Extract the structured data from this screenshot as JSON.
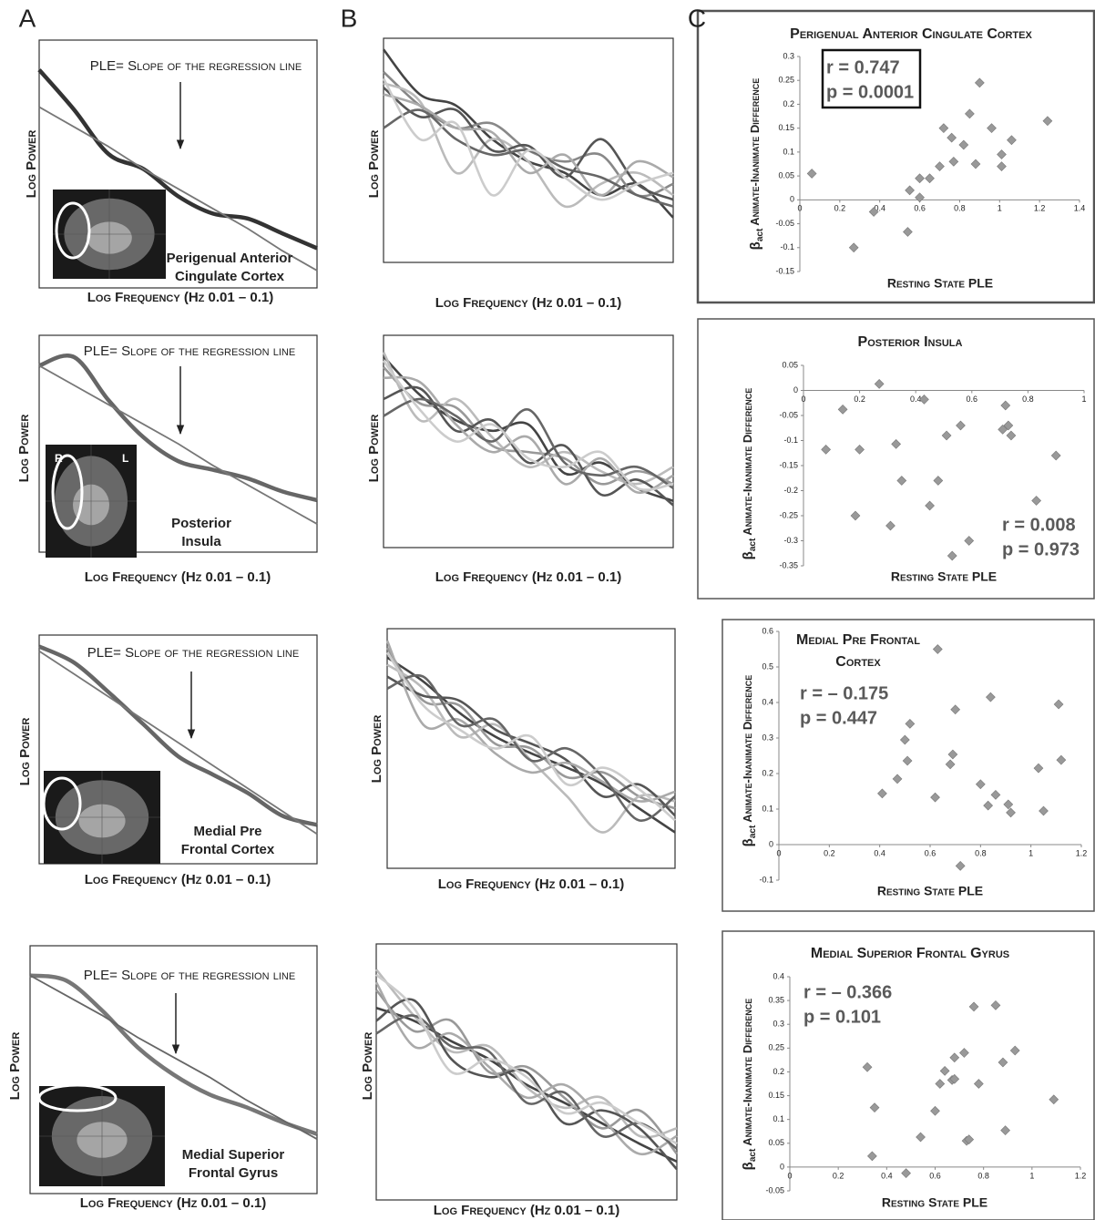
{
  "chart_data": [
    {
      "type": "line",
      "panel_label": "A",
      "annotation": "PLE= Slope of the regression line",
      "region": [
        "Perigenual Anterior",
        "Cingulate Cortex"
      ],
      "ylabel": "Log Power",
      "xlabel": "Log Frequency (Hz 0.01 – 0.1)",
      "ylim": [
        0,
        100
      ],
      "series": [
        {
          "color": "#333333",
          "values": [
            88,
            72,
            54,
            48,
            37,
            30,
            28,
            22,
            16
          ]
        },
        {
          "color": "#777777",
          "values": [
            73,
            65,
            57,
            48,
            40,
            32,
            24,
            15,
            7
          ]
        }
      ]
    },
    {
      "type": "line",
      "annotation": "PLE= Slope of the regression line",
      "region": [
        "Posterior",
        "Insula"
      ],
      "image_labels": [
        "R",
        "L"
      ],
      "ylabel": "Log Power",
      "xlabel": "Log Frequency (Hz 0.01 – 0.1)",
      "ylim": [
        0,
        100
      ],
      "series": [
        {
          "color": "#666666",
          "values": [
            86,
            90,
            70,
            53,
            42,
            38,
            34,
            28,
            24
          ]
        },
        {
          "color": "#777777",
          "values": [
            86,
            77,
            68,
            59,
            50,
            40,
            31,
            22,
            13
          ]
        }
      ]
    },
    {
      "type": "line",
      "annotation": "PLE= Slope of the regression line",
      "region": [
        "Medial Pre",
        "Frontal Cortex"
      ],
      "ylabel": "Log Power",
      "xlabel": "Log Frequency (Hz 0.01 – 0.1)",
      "ylim": [
        0,
        100
      ],
      "series": [
        {
          "color": "#666666",
          "values": [
            95,
            88,
            75,
            61,
            47,
            39,
            31,
            21,
            17
          ]
        },
        {
          "color": "#777777",
          "values": [
            93,
            83,
            73,
            63,
            53,
            43,
            33,
            23,
            13
          ]
        }
      ]
    },
    {
      "type": "line",
      "annotation": "PLE= Slope of the regression line",
      "region": [
        "Medial Superior",
        "Frontal Gyrus"
      ],
      "ylabel": "Log Power",
      "xlabel": "Log Frequency (Hz 0.01 – 0.1)",
      "ylim": [
        0,
        100
      ],
      "series": [
        {
          "color": "#777777",
          "values": [
            88,
            86,
            74,
            59,
            48,
            40,
            35,
            29,
            24
          ]
        },
        {
          "color": "#666666",
          "values": [
            88,
            80,
            72,
            63,
            55,
            47,
            38,
            30,
            22
          ]
        }
      ]
    },
    {
      "type": "line",
      "panel_label": "B",
      "ylabel": "Log Power",
      "xlabel": "Log Frequency (Hz 0.01 – 0.1)",
      "ylim": [
        0,
        100
      ],
      "series": [
        {
          "color": "#444444",
          "values": [
            95,
            75,
            70,
            55,
            45,
            40,
            30,
            35,
            20
          ]
        },
        {
          "color": "#888888",
          "values": [
            85,
            70,
            60,
            62,
            50,
            45,
            48,
            30,
            35
          ]
        },
        {
          "color": "#bbbbbb",
          "values": [
            80,
            72,
            40,
            55,
            45,
            25,
            35,
            40,
            30
          ]
        },
        {
          "color": "#555555",
          "values": [
            78,
            65,
            68,
            50,
            52,
            38,
            55,
            35,
            28
          ]
        },
        {
          "color": "#aaaaaa",
          "values": [
            75,
            70,
            60,
            58,
            40,
            48,
            30,
            45,
            38
          ]
        },
        {
          "color": "#666666",
          "values": [
            60,
            68,
            55,
            48,
            50,
            42,
            38,
            30,
            25
          ]
        },
        {
          "color": "#cccccc",
          "values": [
            82,
            55,
            62,
            30,
            50,
            38,
            28,
            35,
            40
          ]
        }
      ]
    },
    {
      "type": "line",
      "ylabel": "Log Power",
      "xlabel": "Log Frequency (Hz 0.01 – 0.1)",
      "ylim": [
        0,
        100
      ],
      "series": [
        {
          "color": "#444444",
          "values": [
            90,
            72,
            60,
            55,
            58,
            35,
            40,
            28,
            22
          ]
        },
        {
          "color": "#999999",
          "values": [
            85,
            68,
            66,
            48,
            45,
            42,
            30,
            36,
            30
          ]
        },
        {
          "color": "#bbbbbb",
          "values": [
            92,
            60,
            70,
            52,
            38,
            45,
            36,
            30,
            38
          ]
        },
        {
          "color": "#555555",
          "values": [
            70,
            75,
            55,
            60,
            40,
            48,
            25,
            32,
            20
          ]
        },
        {
          "color": "#aaaaaa",
          "values": [
            80,
            78,
            58,
            45,
            52,
            30,
            42,
            26,
            34
          ]
        },
        {
          "color": "#666666",
          "values": [
            62,
            70,
            62,
            50,
            65,
            40,
            34,
            38,
            28
          ]
        },
        {
          "color": "#cccccc",
          "values": [
            88,
            65,
            50,
            58,
            42,
            38,
            45,
            28,
            30
          ]
        }
      ]
    },
    {
      "type": "line",
      "ylabel": "Log Power",
      "xlabel": "Log Frequency (Hz 0.01 – 0.1)",
      "ylim": [
        0,
        100
      ],
      "series": [
        {
          "color": "#444444",
          "values": [
            88,
            78,
            65,
            55,
            48,
            42,
            35,
            25,
            15
          ]
        },
        {
          "color": "#999999",
          "values": [
            92,
            70,
            68,
            52,
            50,
            38,
            40,
            30,
            25
          ]
        },
        {
          "color": "#bbbbbb",
          "values": [
            85,
            75,
            55,
            60,
            45,
            30,
            15,
            30,
            28
          ]
        },
        {
          "color": "#555555",
          "values": [
            80,
            72,
            70,
            58,
            52,
            45,
            30,
            35,
            22
          ]
        },
        {
          "color": "#aaaaaa",
          "values": [
            95,
            60,
            62,
            48,
            40,
            44,
            36,
            28,
            32
          ]
        },
        {
          "color": "#666666",
          "values": [
            75,
            80,
            60,
            62,
            45,
            50,
            38,
            20,
            30
          ]
        },
        {
          "color": "#cccccc",
          "values": [
            90,
            68,
            58,
            50,
            55,
            35,
            42,
            33,
            20
          ]
        }
      ]
    },
    {
      "type": "line",
      "ylabel": "Log Power",
      "xlabel": "Log Frequency (Hz 0.01 – 0.1)",
      "ylim": [
        0,
        100
      ],
      "series": [
        {
          "color": "#444444",
          "values": [
            75,
            70,
            62,
            55,
            45,
            38,
            30,
            22,
            15
          ]
        },
        {
          "color": "#999999",
          "values": [
            82,
            66,
            70,
            50,
            52,
            40,
            28,
            35,
            18
          ]
        },
        {
          "color": "#bbbbbb",
          "values": [
            90,
            72,
            58,
            60,
            44,
            36,
            40,
            25,
            28
          ]
        },
        {
          "color": "#555555",
          "values": [
            70,
            78,
            55,
            48,
            50,
            30,
            35,
            28,
            12
          ]
        },
        {
          "color": "#aaaaaa",
          "values": [
            85,
            60,
            65,
            52,
            40,
            45,
            32,
            18,
            25
          ]
        },
        {
          "color": "#666666",
          "values": [
            65,
            72,
            60,
            58,
            38,
            42,
            25,
            30,
            20
          ]
        },
        {
          "color": "#cccccc",
          "values": [
            88,
            75,
            50,
            55,
            48,
            34,
            38,
            30,
            22
          ]
        }
      ]
    },
    {
      "type": "scatter",
      "panel_label": "C",
      "title": [
        "Perigenual Anterior Cingulate Cortex"
      ],
      "xlabel": "Resting State PLE",
      "ylabel_symbol": "β",
      "ylabel_subscript": "act",
      "ylabel": "Animate-Inanimate Difference",
      "annotation": [
        "r = 0.747",
        "p = 0.0001"
      ],
      "annotation_box": true,
      "color": "#999999",
      "xlim": [
        0,
        1.4
      ],
      "xticks": [
        0,
        0.2,
        0.4,
        0.6,
        0.8,
        1,
        1.2,
        1.4
      ],
      "ylim": [
        -0.15,
        0.3
      ],
      "yticks": [
        -0.15,
        -0.1,
        -0.05,
        0,
        0.05,
        0.1,
        0.15,
        0.2,
        0.25,
        0.3
      ],
      "x": [
        0.06,
        0.27,
        0.37,
        0.54,
        0.55,
        0.6,
        0.6,
        0.65,
        0.7,
        0.72,
        0.76,
        0.77,
        0.82,
        0.85,
        0.88,
        0.9,
        0.96,
        1.01,
        1.01,
        1.06,
        1.24
      ],
      "values": [
        0.055,
        -0.1,
        -0.025,
        -0.067,
        0.02,
        0.005,
        0.045,
        0.045,
        0.07,
        0.15,
        0.13,
        0.08,
        0.115,
        0.18,
        0.075,
        0.245,
        0.15,
        0.095,
        0.07,
        0.125,
        0.165
      ]
    },
    {
      "type": "scatter",
      "title": [
        "Posterior Insula"
      ],
      "xlabel": "Resting State PLE",
      "ylabel_symbol": "β",
      "ylabel_subscript": "act",
      "ylabel": "Animate-Inanimate Difference",
      "annotation": [
        "r = 0.008",
        "p = 0.973"
      ],
      "annotation_box": false,
      "color": "#999999",
      "xlim": [
        0,
        1
      ],
      "xticks": [
        0,
        0.2,
        0.4,
        0.6,
        0.8,
        1
      ],
      "ylim": [
        -0.35,
        0.05
      ],
      "yticks": [
        -0.35,
        -0.3,
        -0.25,
        -0.2,
        -0.15,
        -0.1,
        -0.05,
        0,
        0.05
      ],
      "x": [
        0.08,
        0.14,
        0.2,
        0.185,
        0.27,
        0.31,
        0.33,
        0.35,
        0.43,
        0.45,
        0.48,
        0.51,
        0.53,
        0.56,
        0.59,
        0.71,
        0.72,
        0.73,
        0.74,
        0.83,
        0.9
      ],
      "values": [
        -0.118,
        -0.038,
        -0.118,
        -0.25,
        0.013,
        -0.27,
        -0.107,
        -0.18,
        -0.018,
        -0.23,
        -0.18,
        -0.09,
        -0.33,
        -0.07,
        -0.3,
        -0.078,
        -0.03,
        -0.07,
        -0.09,
        -0.22,
        -0.13
      ]
    },
    {
      "type": "scatter",
      "title": [
        "Medial Pre Frontal",
        "Cortex"
      ],
      "xlabel": "Resting State PLE",
      "ylabel_symbol": "β",
      "ylabel_subscript": "act",
      "ylabel": "Animate-Inanimate Difference",
      "annotation": [
        "r = – 0.175",
        "p = 0.447"
      ],
      "annotation_box": false,
      "color": "#999999",
      "xlim": [
        0,
        1.2
      ],
      "xticks": [
        0,
        0.2,
        0.4,
        0.6,
        0.8,
        1,
        1.2
      ],
      "ylim": [
        -0.1,
        0.6
      ],
      "yticks": [
        -0.1,
        0,
        0.1,
        0.2,
        0.3,
        0.4,
        0.5,
        0.6
      ],
      "x": [
        0.41,
        0.47,
        0.5,
        0.51,
        0.52,
        0.62,
        0.63,
        0.68,
        0.69,
        0.7,
        0.72,
        0.8,
        0.83,
        0.84,
        0.86,
        0.91,
        0.92,
        1.03,
        1.05,
        1.11,
        1.12
      ],
      "values": [
        0.144,
        0.185,
        0.295,
        0.236,
        0.34,
        0.133,
        0.55,
        0.226,
        0.254,
        0.38,
        -0.06,
        0.17,
        0.11,
        0.415,
        0.14,
        0.113,
        0.09,
        0.215,
        0.095,
        0.395,
        0.238
      ]
    },
    {
      "type": "scatter",
      "title": [
        "Medial Superior Frontal Gyrus"
      ],
      "xlabel": "Resting State PLE",
      "ylabel_symbol": "β",
      "ylabel_subscript": "act",
      "ylabel": "Animate-Inanimate Difference",
      "annotation": [
        "r = – 0.366",
        "p = 0.101"
      ],
      "annotation_box": false,
      "color": "#999999",
      "xlim": [
        0,
        1.2
      ],
      "xticks": [
        0,
        0.2,
        0.4,
        0.6,
        0.8,
        1,
        1.2
      ],
      "ylim": [
        -0.05,
        0.4
      ],
      "yticks": [
        -0.05,
        0,
        0.05,
        0.1,
        0.15,
        0.2,
        0.25,
        0.3,
        0.35,
        0.4
      ],
      "x": [
        0.32,
        0.34,
        0.35,
        0.48,
        0.54,
        0.6,
        0.62,
        0.64,
        0.67,
        0.68,
        0.68,
        0.72,
        0.73,
        0.74,
        0.76,
        0.78,
        0.85,
        0.88,
        0.89,
        0.93,
        1.09
      ],
      "values": [
        0.21,
        0.023,
        0.125,
        -0.013,
        0.063,
        0.118,
        0.175,
        0.202,
        0.183,
        0.185,
        0.23,
        0.24,
        0.055,
        0.058,
        0.337,
        0.175,
        0.34,
        0.22,
        0.077,
        0.245,
        0.142
      ]
    }
  ]
}
